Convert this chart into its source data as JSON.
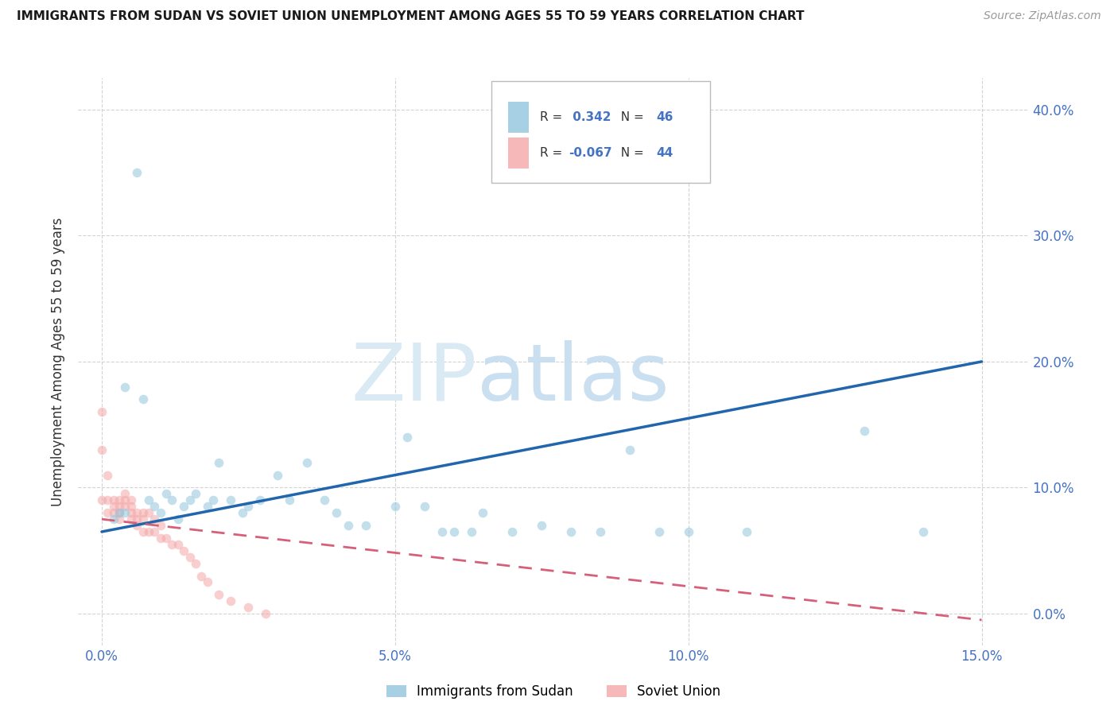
{
  "title": "IMMIGRANTS FROM SUDAN VS SOVIET UNION UNEMPLOYMENT AMONG AGES 55 TO 59 YEARS CORRELATION CHART",
  "source": "Source: ZipAtlas.com",
  "xlabel_tick_vals": [
    0.0,
    0.05,
    0.1,
    0.15
  ],
  "ylabel_tick_vals": [
    0.0,
    0.1,
    0.2,
    0.3,
    0.4
  ],
  "xlim": [
    -0.004,
    0.158
  ],
  "ylim": [
    -0.025,
    0.425
  ],
  "ylabel": "Unemployment Among Ages 55 to 59 years",
  "sudan_color": "#92c5de",
  "soviet_color": "#f4a6a6",
  "sudan_R": 0.342,
  "sudan_N": 46,
  "soviet_R": -0.067,
  "soviet_N": 44,
  "sudan_scatter_x": [
    0.002,
    0.003,
    0.004,
    0.006,
    0.007,
    0.008,
    0.009,
    0.01,
    0.011,
    0.012,
    0.013,
    0.014,
    0.015,
    0.016,
    0.018,
    0.019,
    0.02,
    0.022,
    0.024,
    0.025,
    0.027,
    0.03,
    0.032,
    0.035,
    0.038,
    0.04,
    0.042,
    0.045,
    0.05,
    0.052,
    0.055,
    0.058,
    0.06,
    0.063,
    0.065,
    0.07,
    0.075,
    0.08,
    0.085,
    0.09,
    0.095,
    0.1,
    0.11,
    0.13,
    0.14,
    0.004
  ],
  "sudan_scatter_y": [
    0.075,
    0.08,
    0.08,
    0.35,
    0.17,
    0.09,
    0.085,
    0.08,
    0.095,
    0.09,
    0.075,
    0.085,
    0.09,
    0.095,
    0.085,
    0.09,
    0.12,
    0.09,
    0.08,
    0.085,
    0.09,
    0.11,
    0.09,
    0.12,
    0.09,
    0.08,
    0.07,
    0.07,
    0.085,
    0.14,
    0.085,
    0.065,
    0.065,
    0.065,
    0.08,
    0.065,
    0.07,
    0.065,
    0.065,
    0.13,
    0.065,
    0.065,
    0.065,
    0.145,
    0.065,
    0.18
  ],
  "soviet_scatter_x": [
    0.0,
    0.0,
    0.0,
    0.001,
    0.001,
    0.001,
    0.002,
    0.002,
    0.002,
    0.003,
    0.003,
    0.003,
    0.003,
    0.004,
    0.004,
    0.004,
    0.005,
    0.005,
    0.005,
    0.005,
    0.006,
    0.006,
    0.006,
    0.007,
    0.007,
    0.007,
    0.008,
    0.008,
    0.009,
    0.009,
    0.01,
    0.01,
    0.011,
    0.012,
    0.013,
    0.014,
    0.015,
    0.016,
    0.017,
    0.018,
    0.02,
    0.022,
    0.025,
    0.028
  ],
  "soviet_scatter_y": [
    0.16,
    0.13,
    0.09,
    0.11,
    0.09,
    0.08,
    0.09,
    0.085,
    0.08,
    0.09,
    0.085,
    0.08,
    0.075,
    0.095,
    0.09,
    0.085,
    0.09,
    0.085,
    0.08,
    0.075,
    0.08,
    0.075,
    0.07,
    0.08,
    0.075,
    0.065,
    0.08,
    0.065,
    0.075,
    0.065,
    0.07,
    0.06,
    0.06,
    0.055,
    0.055,
    0.05,
    0.045,
    0.04,
    0.03,
    0.025,
    0.015,
    0.01,
    0.005,
    0.0
  ],
  "blue_line_x": [
    0.0,
    0.15
  ],
  "blue_line_y": [
    0.065,
    0.2
  ],
  "pink_line_x": [
    0.0,
    0.15
  ],
  "pink_line_y": [
    0.075,
    -0.005
  ],
  "background_color": "#ffffff",
  "grid_color": "#c8c8c8",
  "marker_size": 70,
  "marker_alpha": 0.55,
  "line_color_blue": "#2166ac",
  "line_color_pink": "#d6607a",
  "tick_color": "#4472c4",
  "title_fontsize": 11,
  "source_fontsize": 10,
  "axis_label_fontsize": 12,
  "tick_fontsize": 12
}
